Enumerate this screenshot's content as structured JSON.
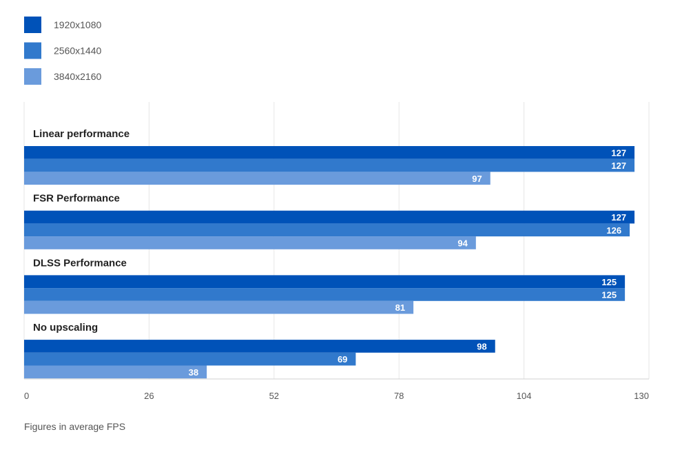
{
  "chart_data": {
    "type": "bar",
    "orientation": "horizontal",
    "categories": [
      "Linear performance",
      "FSR Performance",
      "DLSS Performance",
      "No upscaling"
    ],
    "series": [
      {
        "name": "1920x1080",
        "color": "#0052b8",
        "values": [
          127,
          127,
          125,
          98
        ]
      },
      {
        "name": "2560x1440",
        "color": "#3179cc",
        "values": [
          127,
          126,
          125,
          69
        ]
      },
      {
        "name": "3840x2160",
        "color": "#6a9bdc",
        "values": [
          97,
          94,
          81,
          38
        ]
      }
    ],
    "xlim": [
      0,
      130
    ],
    "xticks": [
      0,
      26,
      52,
      78,
      104,
      130
    ],
    "grid": true,
    "legend_position": "top-left"
  },
  "footnote": "Figures in average FPS"
}
